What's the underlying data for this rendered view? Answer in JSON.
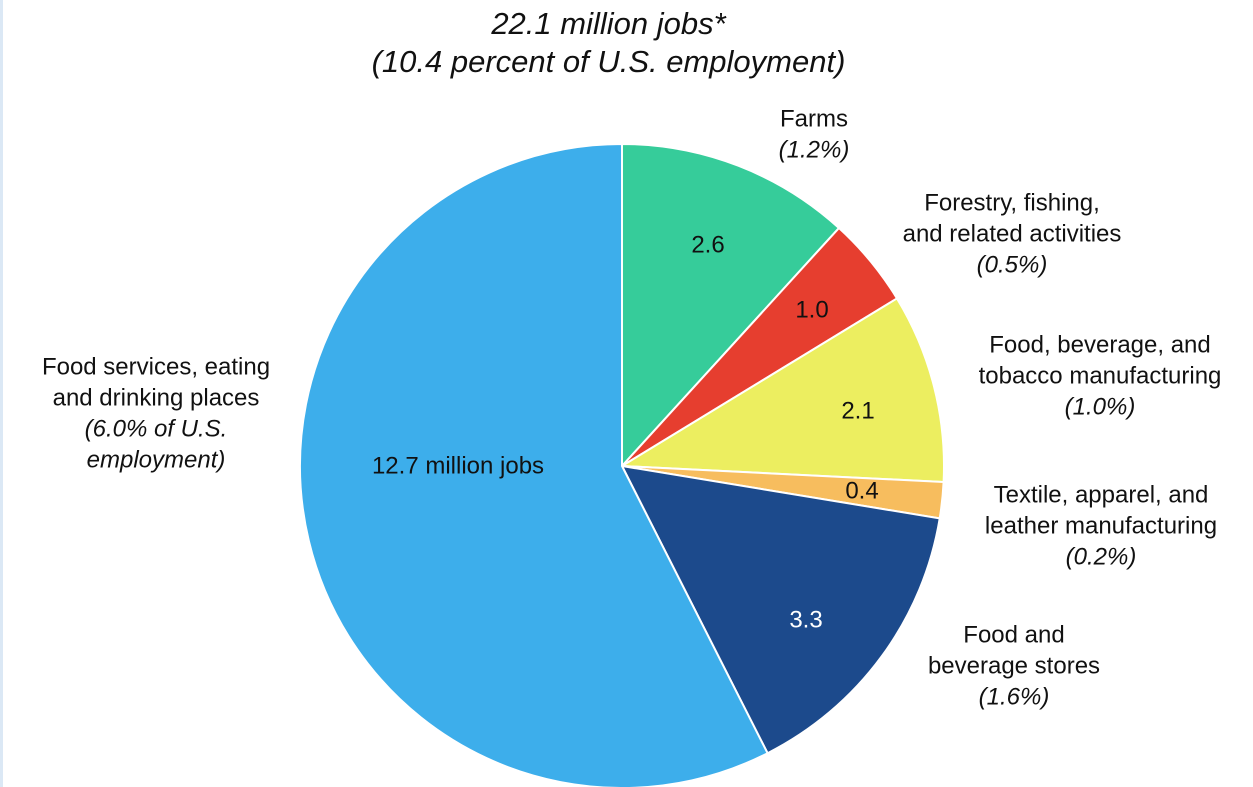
{
  "chart_data": {
    "type": "pie",
    "title": "22.1 million jobs*",
    "subtitle": "(10.4 percent of U.S. employment)",
    "slices": [
      {
        "label_lines": [
          "Farms"
        ],
        "share_lines": [
          "(1.2%)"
        ],
        "value": 2.6,
        "value_label": "2.6",
        "color": "#36cc9a",
        "value_label_color": "#111111"
      },
      {
        "label_lines": [
          "Forestry, fishing,",
          "and related activities"
        ],
        "share_lines": [
          "(0.5%)"
        ],
        "value": 1.0,
        "value_label": "1.0",
        "color": "#e63e2f",
        "value_label_color": "#111111"
      },
      {
        "label_lines": [
          "Food, beverage, and",
          "tobacco manufacturing"
        ],
        "share_lines": [
          "(1.0%)"
        ],
        "value": 2.1,
        "value_label": "2.1",
        "color": "#ecee60",
        "value_label_color": "#111111"
      },
      {
        "label_lines": [
          "Textile, apparel, and",
          "leather manufacturing"
        ],
        "share_lines": [
          "(0.2%)"
        ],
        "value": 0.4,
        "value_label": "0.4",
        "color": "#f7bd5e",
        "value_label_color": "#111111"
      },
      {
        "label_lines": [
          "Food and",
          "beverage stores"
        ],
        "share_lines": [
          "(1.6%)"
        ],
        "value": 3.3,
        "value_label": "3.3",
        "color": "#1c4a8c",
        "value_label_color": "#ffffff"
      },
      {
        "label_lines": [
          "Food services, eating",
          "and drinking places"
        ],
        "share_lines": [
          "(6.0% of U.S.",
          "employment)"
        ],
        "value": 12.7,
        "value_label": "12.7 million jobs",
        "color": "#3daeeb",
        "value_label_color": "#111111"
      }
    ]
  }
}
